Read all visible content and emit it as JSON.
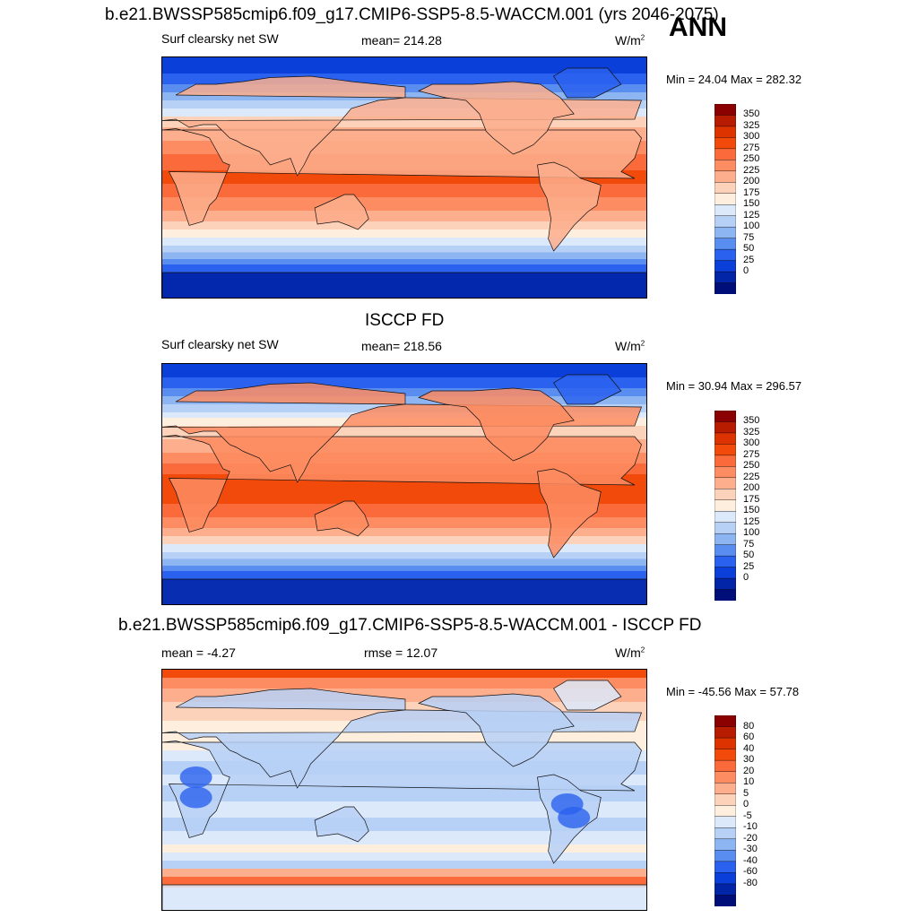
{
  "header": {
    "case_title": "b.e21.BWSSP585cmip6.f09_g17.CMIP6-SSP5-8.5-WACCM.001 (yrs 2046-2075)",
    "season": "ANN"
  },
  "panels": [
    {
      "title": "",
      "left_label": "Surf clearsky net SW",
      "center_label": "mean= 214.28",
      "units": "W/m",
      "units_sup": "2",
      "minmax": "Min =  24.04 Max = 282.32",
      "type": "model",
      "colorbar": {
        "labels": [
          "350",
          "325",
          "300",
          "275",
          "250",
          "225",
          "200",
          "175",
          "150",
          "125",
          "100",
          "75",
          "50",
          "25",
          "0"
        ],
        "colors": [
          "#8b0000",
          "#b81c00",
          "#dc3300",
          "#f24a0a",
          "#fb6a3a",
          "#fd8c62",
          "#fcae8d",
          "#fdd2ba",
          "#fdeede",
          "#dce9fa",
          "#b7d0f6",
          "#8db5f2",
          "#5a8df0",
          "#2a62ef",
          "#0b3fd9",
          "#0224a6",
          "#000e7a"
        ]
      }
    },
    {
      "title": "ISCCP FD",
      "left_label": "Surf clearsky net SW",
      "center_label": "mean= 218.56",
      "units": "W/m",
      "units_sup": "2",
      "minmax": "Min =  30.94 Max = 296.57",
      "type": "obs",
      "colorbar": {
        "labels": [
          "350",
          "325",
          "300",
          "275",
          "250",
          "225",
          "200",
          "175",
          "150",
          "125",
          "100",
          "75",
          "50",
          "25",
          "0"
        ],
        "colors": [
          "#8b0000",
          "#b81c00",
          "#dc3300",
          "#f24a0a",
          "#fb6a3a",
          "#fd8c62",
          "#fcae8d",
          "#fdd2ba",
          "#fdeede",
          "#dce9fa",
          "#b7d0f6",
          "#8db5f2",
          "#5a8df0",
          "#2a62ef",
          "#0b3fd9",
          "#0224a6",
          "#000e7a"
        ]
      }
    },
    {
      "title": "b.e21.BWSSP585cmip6.f09_g17.CMIP6-SSP5-8.5-WACCM.001 - ISCCP FD",
      "left_label": "mean =  -4.27",
      "center_label": "rmse =  12.07",
      "units": "W/m",
      "units_sup": "2",
      "minmax": "Min = -45.56 Max =  57.78",
      "type": "diff",
      "colorbar": {
        "labels": [
          "80",
          "60",
          "40",
          "30",
          "20",
          "10",
          "5",
          "0",
          "-5",
          "-10",
          "-20",
          "-30",
          "-40",
          "-60",
          "-80"
        ],
        "colors": [
          "#8b0000",
          "#b81c00",
          "#dc3300",
          "#f24a0a",
          "#fb6a3a",
          "#fd8c62",
          "#fcae8d",
          "#fdd2ba",
          "#fdeede",
          "#dce9fa",
          "#b7d0f6",
          "#8db5f2",
          "#5a8df0",
          "#2a62ef",
          "#0b3fd9",
          "#0224a6",
          "#000e7a"
        ]
      }
    }
  ]
}
